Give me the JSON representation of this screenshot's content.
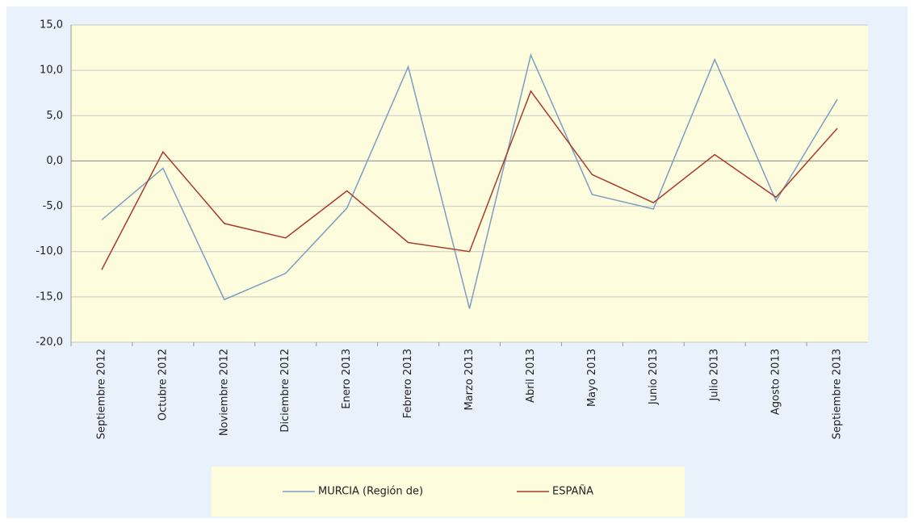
{
  "chart_data": {
    "type": "line",
    "categories": [
      "Septiembre 2012",
      "Octubre 2012",
      "Noviembre 2012",
      "Diciembre 2012",
      "Enero 2013",
      "Febrero 2013",
      "Marzo 2013",
      "Abril 2013",
      "Mayo 2013",
      "Junio 2013",
      "Julio 2013",
      "Agosto 2013",
      "Septiembre 2013"
    ],
    "series": [
      {
        "name": "MURCIA (Región de)",
        "color": "#7b9fc4",
        "values": [
          -6.5,
          -0.8,
          -15.3,
          -12.4,
          -5.2,
          10.4,
          -16.3,
          11.7,
          -3.7,
          -5.3,
          11.2,
          -4.4,
          6.8
        ]
      },
      {
        "name": "ESPAÑA",
        "color": "#a83a2e",
        "values": [
          -12.0,
          1.0,
          -6.9,
          -8.5,
          -3.3,
          -9.0,
          -10.0,
          7.7,
          -1.5,
          -4.6,
          0.7,
          -4.0,
          3.6
        ]
      }
    ],
    "ylim": [
      -20,
      15
    ],
    "yticks": [
      {
        "value": -20,
        "label": "-20,0"
      },
      {
        "value": -15,
        "label": "-15,0"
      },
      {
        "value": -10,
        "label": "-10,0"
      },
      {
        "value": -5,
        "label": "-5,0"
      },
      {
        "value": 0,
        "label": "0,0"
      },
      {
        "value": 5,
        "label": "5,0"
      },
      {
        "value": 10,
        "label": "10,0"
      },
      {
        "value": 15,
        "label": "15,0"
      }
    ],
    "grid": true,
    "legend": "bottom"
  }
}
